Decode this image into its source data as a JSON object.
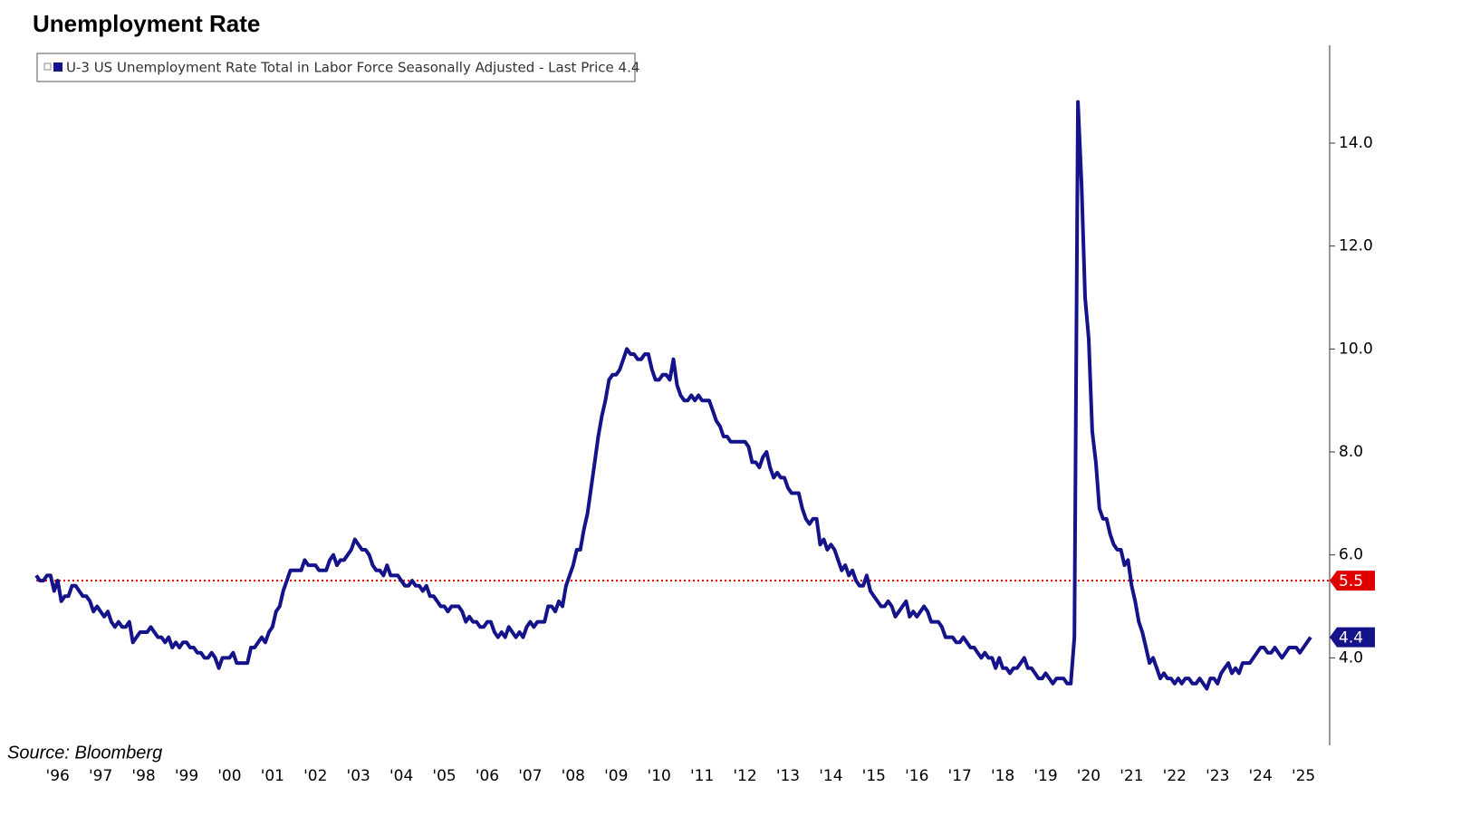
{
  "chart_data": {
    "type": "line",
    "title": "Unemployment Rate",
    "source": "Source: Bloomberg",
    "categories": [
      null,
      null,
      null,
      null,
      null,
      null,
      "'96",
      null,
      null,
      null,
      null,
      null,
      null,
      null,
      null,
      null,
      null,
      null,
      "'97",
      null,
      null,
      null,
      null,
      null,
      null,
      null,
      null,
      null,
      null,
      null,
      "'98",
      null,
      null,
      null,
      null,
      null,
      null,
      null,
      null,
      null,
      null,
      null,
      "'99",
      null,
      null,
      null,
      null,
      null,
      null,
      null,
      null,
      null,
      null,
      null,
      "'00",
      null,
      null,
      null,
      null,
      null,
      null,
      null,
      null,
      null,
      null,
      null,
      "'01",
      null,
      null,
      null,
      null,
      null,
      null,
      null,
      null,
      null,
      null,
      null,
      "'02",
      null,
      null,
      null,
      null,
      null,
      null,
      null,
      null,
      null,
      null,
      null,
      "'03",
      null,
      null,
      null,
      null,
      null,
      null,
      null,
      null,
      null,
      null,
      null,
      "'04",
      null,
      null,
      null,
      null,
      null,
      null,
      null,
      null,
      null,
      null,
      null,
      "'05",
      null,
      null,
      null,
      null,
      null,
      null,
      null,
      null,
      null,
      null,
      null,
      "'06",
      null,
      null,
      null,
      null,
      null,
      null,
      null,
      null,
      null,
      null,
      null,
      "'07",
      null,
      null,
      null,
      null,
      null,
      null,
      null,
      null,
      null,
      null,
      null,
      "'08",
      null,
      null,
      null,
      null,
      null,
      null,
      null,
      null,
      null,
      null,
      null,
      "'09",
      null,
      null,
      null,
      null,
      null,
      null,
      null,
      null,
      null,
      null,
      null,
      "'10",
      null,
      null,
      null,
      null,
      null,
      null,
      null,
      null,
      null,
      null,
      null,
      "'11",
      null,
      null,
      null,
      null,
      null,
      null,
      null,
      null,
      null,
      null,
      null,
      "'12",
      null,
      null,
      null,
      null,
      null,
      null,
      null,
      null,
      null,
      null,
      null,
      "'13",
      null,
      null,
      null,
      null,
      null,
      null,
      null,
      null,
      null,
      null,
      null,
      "'14",
      null,
      null,
      null,
      null,
      null,
      null,
      null,
      null,
      null,
      null,
      null,
      "'15",
      null,
      null,
      null,
      null,
      null,
      null,
      null,
      null,
      null,
      null,
      null,
      "'16",
      null,
      null,
      null,
      null,
      null,
      null,
      null,
      null,
      null,
      null,
      null,
      "'17",
      null,
      null,
      null,
      null,
      null,
      null,
      null,
      null,
      null,
      null,
      null,
      "'18",
      null,
      null,
      null,
      null,
      null,
      null,
      null,
      null,
      null,
      null,
      null,
      "'19",
      null,
      null,
      null,
      null,
      null,
      null,
      null,
      null,
      null,
      null,
      null,
      "'20",
      null,
      null,
      null,
      null,
      null,
      null,
      null,
      null,
      null,
      null,
      null,
      "'21",
      null,
      null,
      null,
      null,
      null,
      null,
      null,
      null,
      null,
      null,
      null,
      "'22",
      null,
      null,
      null,
      null,
      null,
      null,
      null,
      null,
      null,
      null,
      null,
      "'23",
      null,
      null,
      null,
      null,
      null,
      null,
      null,
      null,
      null,
      null,
      null,
      "'24",
      null,
      null,
      null,
      null,
      null,
      null,
      null,
      null,
      null,
      null,
      null,
      "'25",
      null,
      null
    ],
    "series": [
      {
        "name": "U-3 US Unemployment Rate Total in Labor Force Seasonally Adjusted - Last Price 4.4",
        "color": "#15138a",
        "values": [
          5.6,
          5.5,
          5.5,
          5.6,
          5.6,
          5.3,
          5.5,
          5.1,
          5.2,
          5.2,
          5.4,
          5.4,
          5.3,
          5.2,
          5.2,
          5.1,
          4.9,
          5.0,
          4.9,
          4.8,
          4.9,
          4.7,
          4.6,
          4.7,
          4.6,
          4.6,
          4.7,
          4.3,
          4.4,
          4.5,
          4.5,
          4.5,
          4.6,
          4.5,
          4.4,
          4.4,
          4.3,
          4.4,
          4.2,
          4.3,
          4.2,
          4.3,
          4.3,
          4.2,
          4.2,
          4.1,
          4.1,
          4.0,
          4.0,
          4.1,
          4.0,
          3.8,
          4.0,
          4.0,
          4.0,
          4.1,
          3.9,
          3.9,
          3.9,
          3.9,
          4.2,
          4.2,
          4.3,
          4.4,
          4.3,
          4.5,
          4.6,
          4.9,
          5.0,
          5.3,
          5.5,
          5.7,
          5.7,
          5.7,
          5.7,
          5.9,
          5.8,
          5.8,
          5.8,
          5.7,
          5.7,
          5.7,
          5.9,
          6.0,
          5.8,
          5.9,
          5.9,
          6.0,
          6.1,
          6.3,
          6.2,
          6.1,
          6.1,
          6.0,
          5.8,
          5.7,
          5.7,
          5.6,
          5.8,
          5.6,
          5.6,
          5.6,
          5.5,
          5.4,
          5.4,
          5.5,
          5.4,
          5.4,
          5.3,
          5.4,
          5.2,
          5.2,
          5.1,
          5.0,
          5.0,
          4.9,
          5.0,
          5.0,
          5.0,
          4.9,
          4.7,
          4.8,
          4.7,
          4.7,
          4.6,
          4.6,
          4.7,
          4.7,
          4.5,
          4.4,
          4.5,
          4.4,
          4.6,
          4.5,
          4.4,
          4.5,
          4.4,
          4.6,
          4.7,
          4.6,
          4.7,
          4.7,
          4.7,
          5.0,
          5.0,
          4.9,
          5.1,
          5.0,
          5.4,
          5.6,
          5.8,
          6.1,
          6.1,
          6.5,
          6.8,
          7.3,
          7.8,
          8.3,
          8.7,
          9.0,
          9.4,
          9.5,
          9.5,
          9.6,
          9.8,
          10.0,
          9.9,
          9.9,
          9.8,
          9.8,
          9.9,
          9.9,
          9.6,
          9.4,
          9.4,
          9.5,
          9.5,
          9.4,
          9.8,
          9.3,
          9.1,
          9.0,
          9.0,
          9.1,
          9.0,
          9.1,
          9.0,
          9.0,
          9.0,
          8.8,
          8.6,
          8.5,
          8.3,
          8.3,
          8.2,
          8.2,
          8.2,
          8.2,
          8.2,
          8.1,
          7.8,
          7.8,
          7.7,
          7.9,
          8.0,
          7.7,
          7.5,
          7.6,
          7.5,
          7.5,
          7.3,
          7.2,
          7.2,
          7.2,
          6.9,
          6.7,
          6.6,
          6.7,
          6.7,
          6.2,
          6.3,
          6.1,
          6.2,
          6.1,
          5.9,
          5.7,
          5.8,
          5.6,
          5.7,
          5.5,
          5.4,
          5.4,
          5.6,
          5.3,
          5.2,
          5.1,
          5.0,
          5.0,
          5.1,
          5.0,
          4.8,
          4.9,
          5.0,
          5.1,
          4.8,
          4.9,
          4.8,
          4.9,
          5.0,
          4.9,
          4.7,
          4.7,
          4.7,
          4.6,
          4.4,
          4.4,
          4.4,
          4.3,
          4.3,
          4.4,
          4.3,
          4.2,
          4.2,
          4.1,
          4.0,
          4.1,
          4.0,
          4.0,
          3.8,
          4.0,
          3.8,
          3.8,
          3.7,
          3.8,
          3.8,
          3.9,
          4.0,
          3.8,
          3.8,
          3.7,
          3.6,
          3.6,
          3.7,
          3.6,
          3.5,
          3.6,
          3.6,
          3.6,
          3.5,
          3.5,
          4.4,
          14.8,
          13.2,
          11.0,
          10.2,
          8.4,
          7.8,
          6.9,
          6.7,
          6.7,
          6.4,
          6.2,
          6.1,
          6.1,
          5.8,
          5.9,
          5.4,
          5.1,
          4.7,
          4.5,
          4.2,
          3.9,
          4.0,
          3.8,
          3.6,
          3.7,
          3.6,
          3.6,
          3.5,
          3.6,
          3.5,
          3.6,
          3.6,
          3.5,
          3.5,
          3.6,
          3.5,
          3.4,
          3.6,
          3.6,
          3.5,
          3.7,
          3.8,
          3.9,
          3.7,
          3.8,
          3.7,
          3.9,
          3.9,
          3.9,
          4.0,
          4.1,
          4.2,
          4.2,
          4.1,
          4.1,
          4.2,
          4.1,
          4.0,
          4.1,
          4.2,
          4.2,
          4.2,
          4.1,
          4.2,
          4.3,
          4.4
        ]
      }
    ],
    "ylim": [
      2.3,
      15.9
    ],
    "yticks": [
      {
        "value": 4,
        "label": "4.0"
      },
      {
        "value": 6,
        "label": "6.0"
      },
      {
        "value": 8,
        "label": "8.0"
      },
      {
        "value": 10,
        "label": "10.0"
      },
      {
        "value": 12,
        "label": "12.0"
      },
      {
        "value": 14,
        "label": "14.0"
      }
    ],
    "reference_line": {
      "value": 5.5,
      "color": "#e00000"
    }
  }
}
